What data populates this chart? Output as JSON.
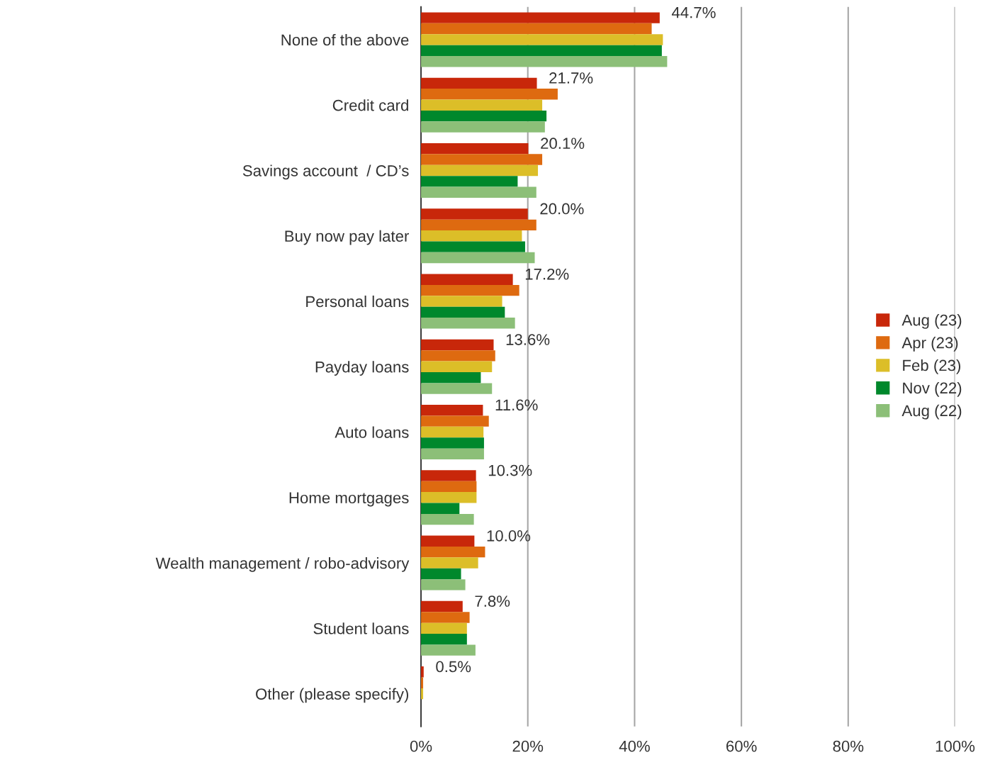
{
  "chart_data": {
    "type": "bar",
    "orientation": "horizontal",
    "categories": [
      "None of the above",
      "Credit card",
      "Savings account  / CD’s",
      "Buy now pay later",
      "Personal loans",
      "Payday loans",
      "Auto loans",
      "Home mortgages",
      "Wealth management / robo-advisory",
      "Student loans",
      "Other (please specify)"
    ],
    "series": [
      {
        "name": "Aug (23)",
        "color": "#c8270a",
        "values": [
          44.7,
          21.7,
          20.1,
          20.0,
          17.2,
          13.6,
          11.6,
          10.3,
          10.0,
          7.8,
          0.5
        ],
        "value_labels": [
          "44.7%",
          "21.7%",
          "20.1%",
          "20.0%",
          "17.2%",
          "13.6%",
          "11.6%",
          "10.3%",
          "10.0%",
          "7.8%",
          "0.5%"
        ]
      },
      {
        "name": "Apr (23)",
        "color": "#de6a10",
        "values": [
          43.2,
          25.6,
          22.7,
          21.6,
          18.4,
          13.9,
          12.7,
          10.4,
          12.0,
          9.1,
          0.4
        ]
      },
      {
        "name": "Feb (23)",
        "color": "#dcbe28",
        "values": [
          45.3,
          22.7,
          21.9,
          18.9,
          15.2,
          13.3,
          11.7,
          10.4,
          10.7,
          8.6,
          0.4
        ]
      },
      {
        "name": "Nov (22)",
        "color": "#00882c",
        "values": [
          45.1,
          23.5,
          18.1,
          19.5,
          15.7,
          11.2,
          11.8,
          7.2,
          7.5,
          8.6,
          0
        ]
      },
      {
        "name": "Aug (22)",
        "color": "#8cbf78",
        "values": [
          46.1,
          23.2,
          21.6,
          21.3,
          17.6,
          13.3,
          11.8,
          9.9,
          8.3,
          10.2,
          0
        ]
      }
    ],
    "xlim": [
      0,
      100
    ],
    "xticks": [
      {
        "value": 0,
        "label": "0%"
      },
      {
        "value": 20,
        "label": "20%"
      },
      {
        "value": 40,
        "label": "40%"
      },
      {
        "value": 60,
        "label": "60%"
      },
      {
        "value": 80,
        "label": "80%"
      },
      {
        "value": 100,
        "label": "100%"
      }
    ],
    "grid": "x",
    "legend": "right"
  }
}
